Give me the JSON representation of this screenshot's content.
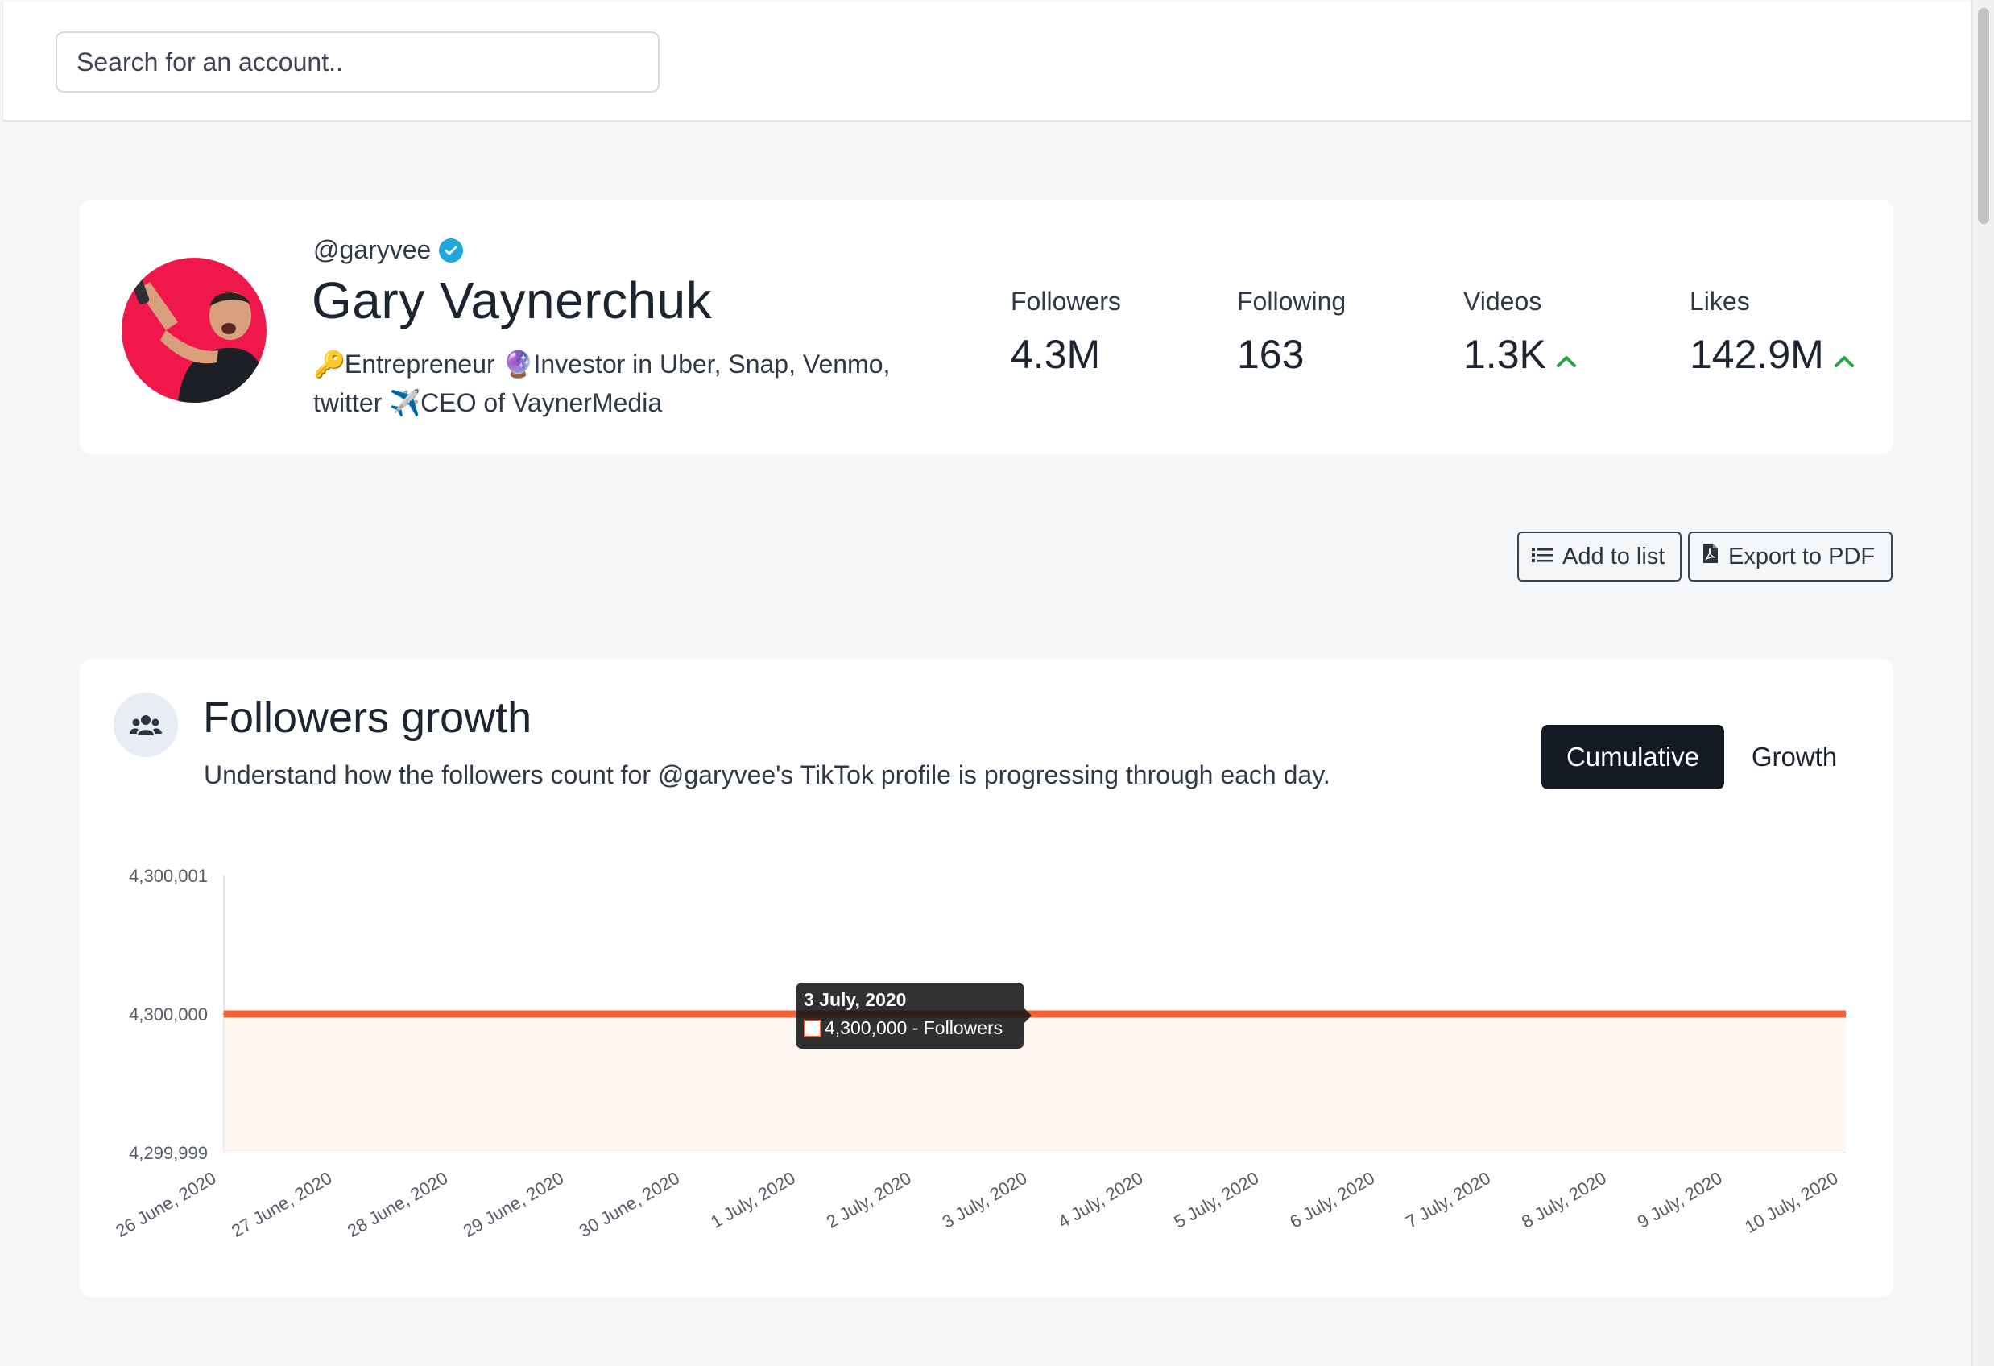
{
  "search": {
    "placeholder": "Search for an account.."
  },
  "profile": {
    "handle": "@garyvee",
    "name": "Gary Vaynerchuk",
    "bio_part1": "Entrepreneur",
    "bio_part2": "Investor in Uber, Snap, Venmo,",
    "bio_part3": "twitter",
    "bio_part4": "CEO of VaynerMedia",
    "bio_emojis": [
      "🔑",
      "🔮",
      "✈️"
    ],
    "avatar_color": "#f0174a",
    "verified_color": "#20a6d8"
  },
  "stats": [
    {
      "label": "Followers",
      "value": "4.3M",
      "trend": ""
    },
    {
      "label": "Following",
      "value": "163",
      "trend": ""
    },
    {
      "label": "Videos",
      "value": "1.3K",
      "trend": "up"
    },
    {
      "label": "Likes",
      "value": "142.9M",
      "trend": "up"
    }
  ],
  "actions": {
    "add_to_list": "Add to list",
    "export_pdf": "Export to PDF"
  },
  "followers_growth": {
    "title": "Followers growth",
    "subtitle": "Understand how the followers count for @garyvee's TikTok profile is progressing through each day.",
    "toggle_active": "Cumulative",
    "toggle_other": "Growth"
  },
  "tooltip": {
    "title": "3 July, 2020",
    "value": "4,300,000 - Followers"
  },
  "colors": {
    "line": "#f06234",
    "fill": "#fff5f1",
    "trend_up": "#28a745",
    "dark_button": "#141a23"
  },
  "chart_data": {
    "type": "line",
    "x": [
      "26 June, 2020",
      "27 June, 2020",
      "28 June, 2020",
      "29 June, 2020",
      "30 June, 2020",
      "1 July, 2020",
      "2 July, 2020",
      "3 July, 2020",
      "4 July, 2020",
      "5 July, 2020",
      "6 July, 2020",
      "7 July, 2020",
      "8 July, 2020",
      "9 July, 2020",
      "10 July, 2020"
    ],
    "series": [
      {
        "name": "Followers",
        "values": [
          4300000,
          4300000,
          4300000,
          4300000,
          4300000,
          4300000,
          4300000,
          4300000,
          4300000,
          4300000,
          4300000,
          4300000,
          4300000,
          4300000,
          4300000
        ]
      }
    ],
    "yticks": [
      "4,300,001",
      "4,300,000",
      "4,299,999"
    ],
    "ylim": [
      4299999,
      4300001
    ],
    "area_fill": true,
    "grid": false
  }
}
